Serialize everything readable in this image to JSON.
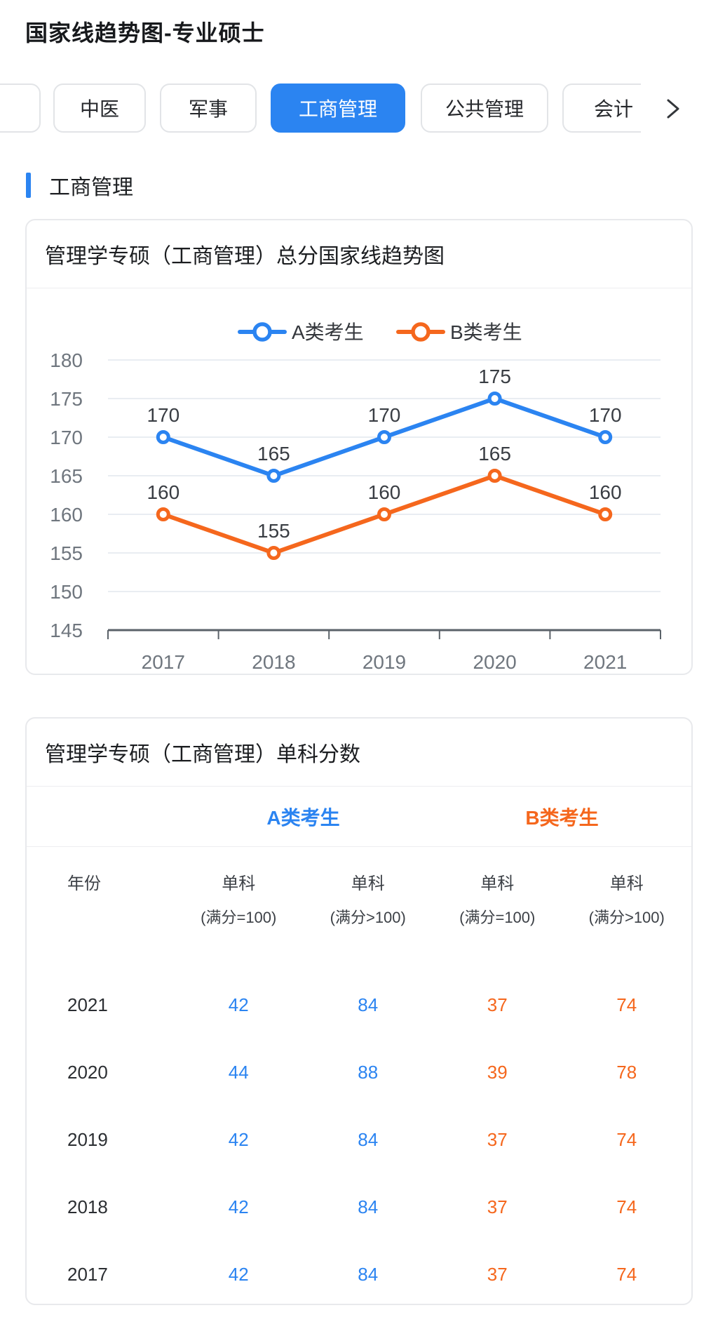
{
  "page": {
    "title": "国家线趋势图-专业硕士"
  },
  "colors": {
    "blue": "#2b84f1",
    "orange": "#f5671d",
    "grid": "#e9edf2",
    "axis": "#5b6269",
    "tick_text": "#6f767e",
    "data_label": "#393d43"
  },
  "tabs": {
    "items": [
      {
        "label": "中医",
        "selected": false
      },
      {
        "label": "军事",
        "selected": false
      },
      {
        "label": "工商管理",
        "selected": true
      },
      {
        "label": "公共管理",
        "selected": false
      },
      {
        "label": "会计",
        "selected": false
      }
    ],
    "scroll_right_icon": "chevron-right"
  },
  "section": {
    "title": "工商管理"
  },
  "chart_card": {
    "title": "管理学专硕（工商管理）总分国家线趋势图"
  },
  "chart_data": {
    "type": "line",
    "title": "管理学专硕（工商管理）总分国家线趋势图",
    "x": [
      "2017",
      "2018",
      "2019",
      "2020",
      "2021"
    ],
    "series": [
      {
        "name": "A类考生",
        "color": "#2b84f1",
        "values": [
          170,
          165,
          170,
          175,
          170
        ]
      },
      {
        "name": "B类考生",
        "color": "#f5671d",
        "values": [
          160,
          155,
          160,
          165,
          160
        ]
      }
    ],
    "ylim": [
      145,
      180
    ],
    "yticks": [
      180,
      175,
      170,
      165,
      160,
      155,
      150,
      145
    ],
    "grid": true,
    "legend_position": "top",
    "data_labels": true
  },
  "table_card": {
    "title": "管理学专硕（工商管理）单科分数",
    "groups": [
      {
        "label": "A类考生",
        "color": "#2b84f1"
      },
      {
        "label": "B类考生",
        "color": "#f5671d"
      }
    ],
    "columns": [
      {
        "line1": "年份",
        "line2": ""
      },
      {
        "line1": "单科",
        "line2": "(满分=100)",
        "group": "A"
      },
      {
        "line1": "单科",
        "line2": "(满分>100)",
        "group": "A"
      },
      {
        "line1": "单科",
        "line2": "(满分=100)",
        "group": "B"
      },
      {
        "line1": "单科",
        "line2": "(满分>100)",
        "group": "B"
      }
    ],
    "rows": [
      {
        "year": "2021",
        "values": [
          "42",
          "84",
          "37",
          "74"
        ]
      },
      {
        "year": "2020",
        "values": [
          "44",
          "88",
          "39",
          "78"
        ]
      },
      {
        "year": "2019",
        "values": [
          "42",
          "84",
          "37",
          "74"
        ]
      },
      {
        "year": "2018",
        "values": [
          "42",
          "84",
          "37",
          "74"
        ]
      },
      {
        "year": "2017",
        "values": [
          "42",
          "84",
          "37",
          "74"
        ]
      }
    ]
  }
}
